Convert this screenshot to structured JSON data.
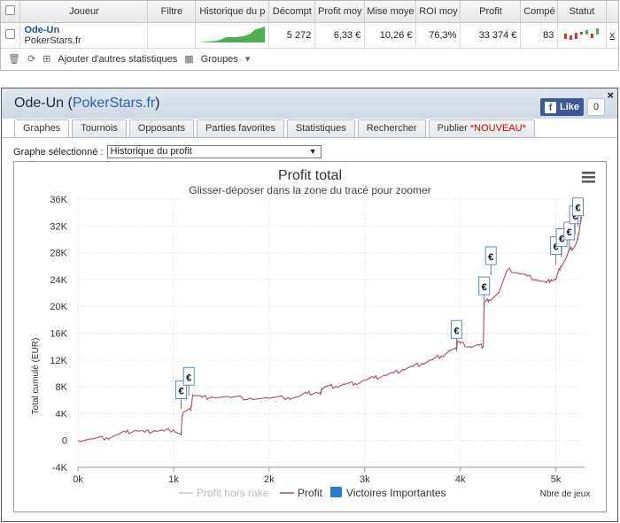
{
  "table": {
    "headers": [
      "Joueur",
      "Filtre",
      "Historique du p",
      "Décompt",
      "Profit moy",
      "Mise moye",
      "ROI moy",
      "Profit",
      "Compé",
      "Statut"
    ],
    "row": {
      "player_name": "Ode-Un",
      "site": "PokerStars.fr",
      "decompte": "5 272",
      "profit_moy": "6,33 €",
      "mise_moy": "10,26 €",
      "roi_moy": "76,3%",
      "profit": "33 374 €",
      "competitions": "83",
      "remove": "x"
    }
  },
  "toolbar": {
    "add_stats": "Ajouter d'autres statistiques",
    "groups": "Groupes"
  },
  "panel": {
    "player_name": "Ode-Un",
    "site": "PokerStars.fr",
    "close": "×",
    "fb_like": "Like",
    "fb_count": "0",
    "tabs": [
      "Graphes",
      "Tournois",
      "Opposants",
      "Parties favorites",
      "Statistiques",
      "Rechercher",
      "Publier"
    ],
    "publish_badge": "*NOUVEAU*",
    "graph_label": "Graphe sélectionné :",
    "graph_selected": "Historique du profit"
  },
  "chart_data": {
    "type": "line",
    "title": "Profit total",
    "subtitle": "Glisser-déposer dans la zone du tracé pour zoomer",
    "ylabel": "Total cumulé (EUR)",
    "xlabel": "Nbre de jeux",
    "ylim": [
      -4000,
      36000
    ],
    "xlim": [
      0,
      5300
    ],
    "yticks": [
      "-4K",
      "0",
      "4K",
      "8K",
      "12K",
      "16K",
      "20K",
      "24K",
      "28K",
      "32K",
      "36K"
    ],
    "xticks": [
      "0k",
      "1k",
      "2k",
      "3k",
      "4k",
      "5k"
    ],
    "legend": [
      "Profit hors rake",
      "Profit",
      "Victoires Importantes"
    ],
    "legend_position": "bottom",
    "grid": true,
    "series": [
      {
        "name": "Profit",
        "color": "#a0525a",
        "x": [
          0,
          150,
          300,
          400,
          500,
          600,
          700,
          800,
          900,
          1000,
          1080,
          1090,
          1100,
          1180,
          1200,
          1300,
          1400,
          1600,
          1800,
          2000,
          2200,
          2300,
          2400,
          2500,
          2540,
          2550,
          2600,
          2700,
          2800,
          2900,
          3000,
          3100,
          3200,
          3300,
          3400,
          3500,
          3600,
          3700,
          3800,
          3900,
          3960,
          3970,
          4000,
          4100,
          4200,
          4240,
          4250,
          4300,
          4400,
          4500,
          4600,
          4700,
          4800,
          4900,
          4950,
          5000,
          5050,
          5100,
          5150,
          5200,
          5230,
          5250,
          5272
        ],
        "y": [
          0,
          200,
          400,
          800,
          1200,
          1500,
          1200,
          1500,
          1400,
          1600,
          800,
          3800,
          4200,
          4500,
          6800,
          6400,
          6500,
          6400,
          6300,
          6300,
          6400,
          6500,
          7000,
          7200,
          6800,
          7800,
          8000,
          8100,
          8400,
          8500,
          9000,
          9300,
          9700,
          10000,
          10600,
          11000,
          11500,
          12000,
          12600,
          13500,
          13500,
          14800,
          14500,
          14000,
          14200,
          14000,
          20500,
          21000,
          22000,
          25500,
          25000,
          24500,
          24000,
          23500,
          24000,
          24000,
          26000,
          27000,
          28500,
          29000,
          30000,
          32000,
          33374
        ]
      }
    ],
    "annotations": [
      {
        "label": "€",
        "x": 1080,
        "y": 6500
      },
      {
        "label": "€",
        "x": 1160,
        "y": 8500
      },
      {
        "label": "€",
        "x": 3960,
        "y": 15500
      },
      {
        "label": "€",
        "x": 4250,
        "y": 22000
      },
      {
        "label": "€",
        "x": 4320,
        "y": 26500
      },
      {
        "label": "€",
        "x": 5000,
        "y": 28000
      },
      {
        "label": "€",
        "x": 5060,
        "y": 29200
      },
      {
        "label": "€",
        "x": 5140,
        "y": 30200
      },
      {
        "label": "€",
        "x": 5200,
        "y": 32600
      },
      {
        "label": "€",
        "x": 5230,
        "y": 33800
      }
    ]
  }
}
